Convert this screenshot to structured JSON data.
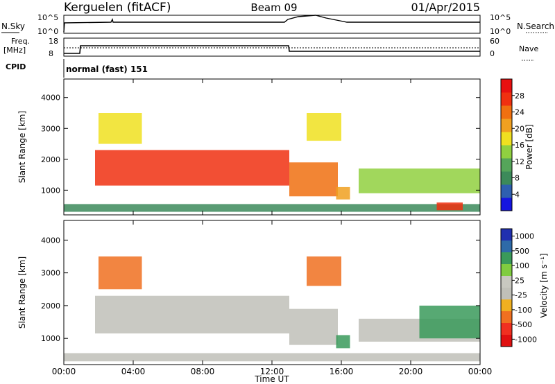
{
  "header": {
    "radar": "Kerguelen (fitACF)",
    "beam": "Beam 09",
    "date": "01/Apr/2015"
  },
  "nsky_panel": {
    "left_label": "N.Sky",
    "right_label": "N.Search",
    "ticks": [
      "10^5",
      "10^0"
    ]
  },
  "freq_panel": {
    "left_label_1": "Freq.",
    "left_label_2": "[MHz]",
    "left_ticks": [
      "18",
      "8"
    ],
    "right_label": "Nave",
    "right_ticks": [
      "60",
      "0"
    ]
  },
  "cpid": {
    "label": "CPID",
    "value": "normal (fast) 151"
  },
  "colors": {
    "power_scale": [
      "#1515e0",
      "#2e5fb0",
      "#3c8a5a",
      "#55a55a",
      "#90d040",
      "#f0e020",
      "#f0a020",
      "#f07010",
      "#f03010",
      "#e81010"
    ],
    "velocity_scale": [
      "#2030b0",
      "#2e6aa8",
      "#3a9a5a",
      "#80cc40",
      "#c8c8c0",
      "#c0c0b8",
      "#f0b020",
      "#f07020",
      "#f03020",
      "#e01010"
    ],
    "ground_scatter": "#c0c0b8"
  },
  "chart_data": [
    {
      "type": "heatmap",
      "title": "Power",
      "xlabel": "",
      "ylabel": "Slant Range [km]",
      "x_ticks": [
        "00:00",
        "04:00",
        "08:00",
        "12:00",
        "16:00",
        "20:00",
        "00:00"
      ],
      "y_ticks": [
        "1000",
        "2000",
        "3000",
        "4000"
      ],
      "ylim": [
        200,
        4600
      ],
      "colorbar": {
        "label": "Power [dB]",
        "ticks": [
          "4",
          "8",
          "12",
          "16",
          "20",
          "24",
          "28"
        ],
        "range": [
          0,
          32
        ]
      },
      "regions": [
        {
          "t_start": 0.0,
          "t_end": 24.0,
          "range_low": 300,
          "range_high": 550,
          "level": 8
        },
        {
          "t_start": 1.8,
          "t_end": 13.0,
          "range_low": 1150,
          "range_high": 2300,
          "level": 28
        },
        {
          "t_start": 13.0,
          "t_end": 15.8,
          "range_low": 800,
          "range_high": 1900,
          "level": 24
        },
        {
          "t_start": 15.7,
          "t_end": 16.5,
          "range_low": 700,
          "range_high": 1100,
          "level": 20
        },
        {
          "t_start": 17.0,
          "t_end": 24.0,
          "range_low": 900,
          "range_high": 1700,
          "level": 14
        },
        {
          "t_start": 21.5,
          "t_end": 23.0,
          "range_low": 350,
          "range_high": 600,
          "level": 28
        },
        {
          "t_start": 2.0,
          "t_end": 4.5,
          "range_low": 2500,
          "range_high": 3500,
          "level": 18
        },
        {
          "t_start": 14.0,
          "t_end": 16.0,
          "range_low": 2600,
          "range_high": 3500,
          "level": 18
        }
      ]
    },
    {
      "type": "heatmap",
      "title": "Velocity",
      "xlabel": "Time UT",
      "ylabel": "Slant Range [km]",
      "x_ticks": [
        "00:00",
        "04:00",
        "08:00",
        "12:00",
        "16:00",
        "20:00",
        "00:00"
      ],
      "y_ticks": [
        "1000",
        "2000",
        "3000",
        "4000"
      ],
      "ylim": [
        200,
        4600
      ],
      "colorbar": {
        "label": "Velocity [m s⁻¹]",
        "ticks": [
          "1000",
          "500",
          "100",
          "25",
          "-25",
          "-100",
          "-500",
          "-1000"
        ]
      },
      "regions": [
        {
          "t_start": 0.0,
          "t_end": 24.0,
          "range_low": 300,
          "range_high": 550,
          "level": "ground"
        },
        {
          "t_start": 1.8,
          "t_end": 13.0,
          "range_low": 1150,
          "range_high": 2300,
          "level": "ground"
        },
        {
          "t_start": 13.0,
          "t_end": 15.8,
          "range_low": 800,
          "range_high": 1900,
          "level": "ground"
        },
        {
          "t_start": 17.0,
          "t_end": 24.0,
          "range_low": 900,
          "range_high": 1600,
          "level": "ground"
        },
        {
          "t_start": 2.0,
          "t_end": 4.5,
          "range_low": 2500,
          "range_high": 3500,
          "level": -500
        },
        {
          "t_start": 14.0,
          "t_end": 16.0,
          "range_low": 2600,
          "range_high": 3500,
          "level": -500
        },
        {
          "t_start": 15.7,
          "t_end": 16.5,
          "range_low": 700,
          "range_high": 1100,
          "level": 100
        },
        {
          "t_start": 20.5,
          "t_end": 24.0,
          "range_low": 1000,
          "range_high": 2000,
          "level": 100
        }
      ]
    }
  ]
}
